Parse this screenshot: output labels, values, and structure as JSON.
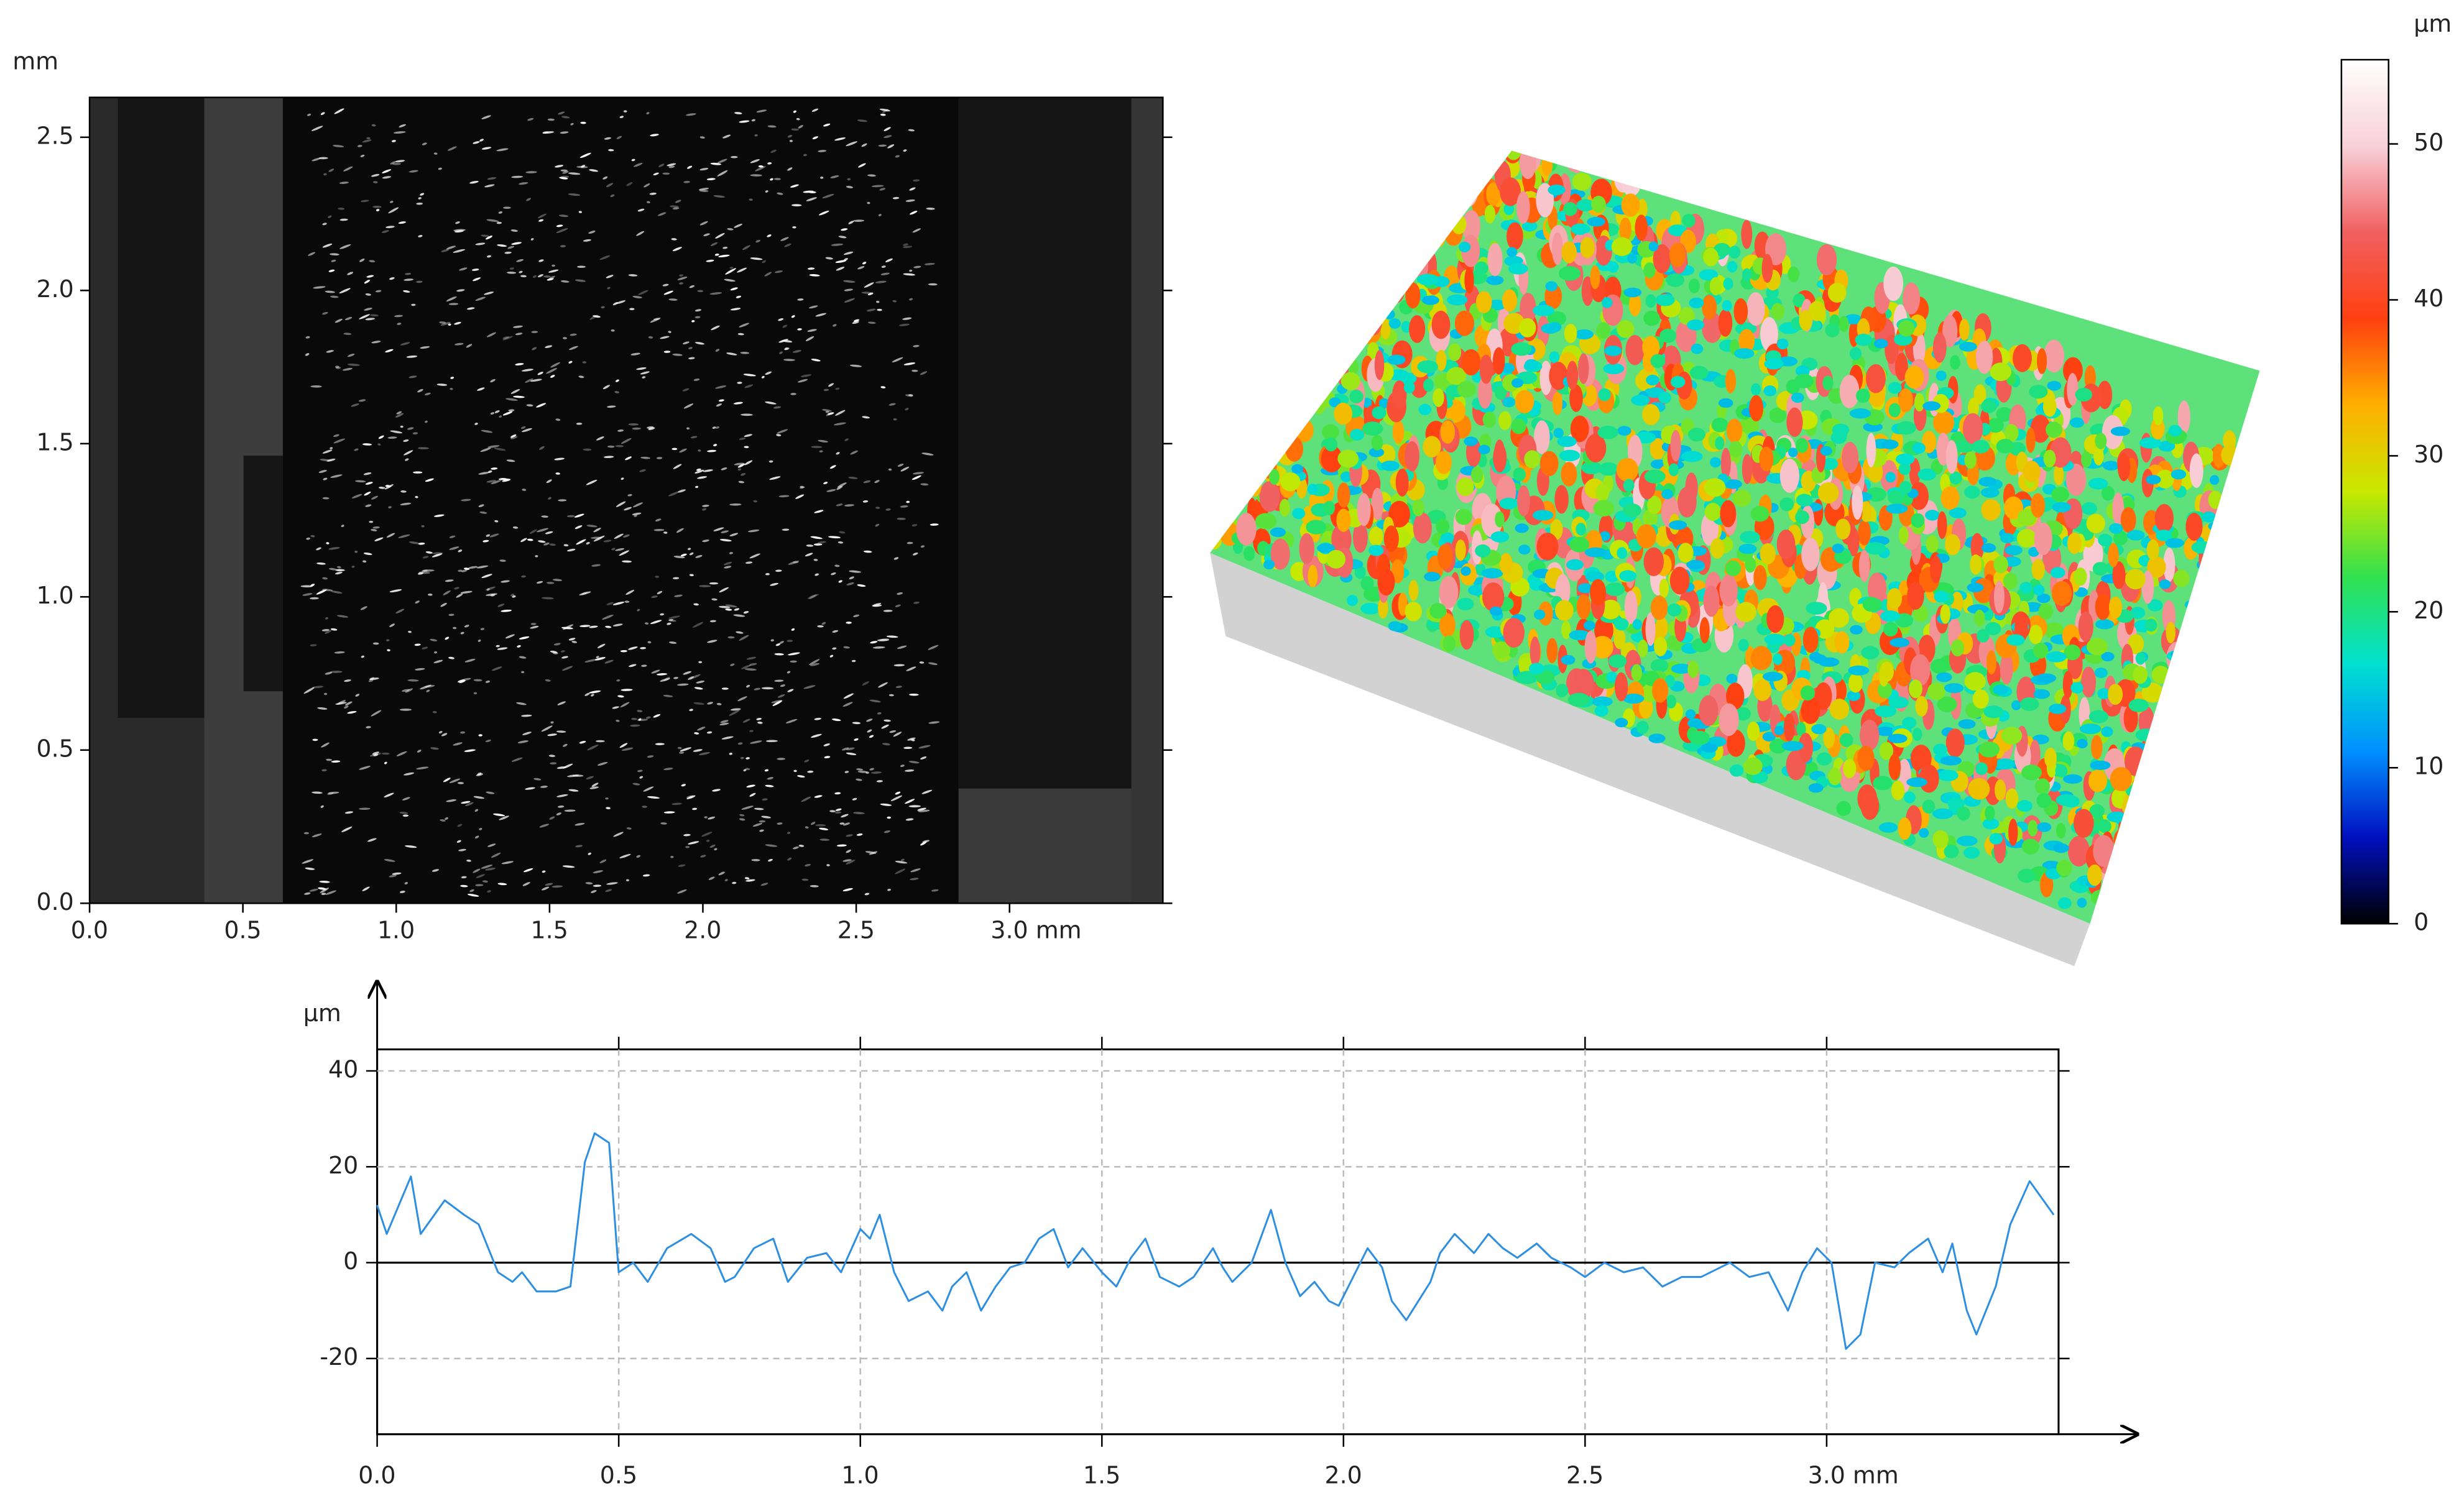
{
  "chart_data": [
    {
      "type": "image",
      "ylabel": "mm",
      "xlim": [
        0,
        3.5
      ],
      "ylim": [
        0,
        2.63
      ],
      "xticks": [
        {
          "value": 0,
          "label": "0.0"
        },
        {
          "value": 0.5,
          "label": "0.5"
        },
        {
          "value": 1,
          "label": "1.0"
        },
        {
          "value": 1.5,
          "label": "1.5"
        },
        {
          "value": 2,
          "label": "2.0"
        },
        {
          "value": 2.5,
          "label": "2.5"
        },
        {
          "value": 3,
          "label": "3.0 mm"
        }
      ],
      "yticks": [
        {
          "value": 0,
          "label": "0.0"
        },
        {
          "value": 0.5,
          "label": "0.5"
        },
        {
          "value": 1,
          "label": "1.0"
        },
        {
          "value": 1.5,
          "label": "1.5"
        },
        {
          "value": 2,
          "label": "2.0"
        },
        {
          "value": 2.5,
          "label": "2.5"
        }
      ]
    },
    {
      "type": "colorbar",
      "label": "µm",
      "ylim": [
        0,
        55.4
      ],
      "yticks": [
        0,
        10,
        20,
        30,
        40,
        50
      ],
      "colormap": [
        "#000000",
        "#0010c0",
        "#0090ff",
        "#00e0d0",
        "#30e050",
        "#c8e800",
        "#ffb000",
        "#ff4010",
        "#f06060",
        "#f8d0d8",
        "#ffffff"
      ]
    },
    {
      "type": "line",
      "ylabel": "µm",
      "color": "#2e8fe0",
      "grid": true,
      "xlim": [
        0,
        3.48
      ],
      "ylim": [
        -35.8,
        44.5
      ],
      "xticks": [
        {
          "value": 0,
          "label": "0.0"
        },
        {
          "value": 0.5,
          "label": "0.5"
        },
        {
          "value": 1,
          "label": "1.0"
        },
        {
          "value": 1.5,
          "label": "1.5"
        },
        {
          "value": 2,
          "label": "2.0"
        },
        {
          "value": 2.5,
          "label": "2.5"
        },
        {
          "value": 3,
          "label": "3.0 mm"
        }
      ],
      "yticks": [
        40,
        20,
        0,
        -20
      ],
      "x": [
        0,
        0.02,
        0.07,
        0.09,
        0.14,
        0.18,
        0.21,
        0.25,
        0.28,
        0.3,
        0.33,
        0.37,
        0.4,
        0.43,
        0.45,
        0.48,
        0.5,
        0.53,
        0.56,
        0.6,
        0.65,
        0.69,
        0.72,
        0.74,
        0.78,
        0.82,
        0.85,
        0.89,
        0.93,
        0.96,
        1,
        1.02,
        1.04,
        1.07,
        1.1,
        1.14,
        1.17,
        1.19,
        1.22,
        1.25,
        1.28,
        1.31,
        1.34,
        1.37,
        1.4,
        1.43,
        1.46,
        1.5,
        1.53,
        1.56,
        1.59,
        1.62,
        1.66,
        1.69,
        1.73,
        1.75,
        1.77,
        1.81,
        1.85,
        1.88,
        1.91,
        1.94,
        1.97,
        1.99,
        2.02,
        2.05,
        2.08,
        2.1,
        2.13,
        2.18,
        2.2,
        2.23,
        2.27,
        2.3,
        2.33,
        2.36,
        2.4,
        2.43,
        2.47,
        2.5,
        2.54,
        2.58,
        2.62,
        2.66,
        2.7,
        2.74,
        2.8,
        2.84,
        2.88,
        2.92,
        2.95,
        2.98,
        3.01,
        3.04,
        3.07,
        3.1,
        3.14,
        3.17,
        3.21,
        3.24,
        3.26,
        3.29,
        3.31,
        3.35,
        3.38,
        3.42,
        3.47
      ],
      "values": [
        12,
        6,
        18,
        6,
        13,
        10,
        8,
        -2,
        -4,
        -2,
        -6,
        -6,
        -5,
        21,
        27,
        25,
        -2,
        0,
        -4,
        3,
        6,
        3,
        -4,
        -3,
        3,
        5,
        -4,
        1,
        2,
        -2,
        7,
        5,
        10,
        -2,
        -8,
        -6,
        -10,
        -5,
        -2,
        -10,
        -5,
        -1,
        0,
        5,
        7,
        -1,
        3,
        -2,
        -5,
        1,
        5,
        -3,
        -5,
        -3,
        3,
        -1,
        -4,
        0,
        11,
        0,
        -7,
        -4,
        -8,
        -9,
        -3,
        3,
        -1,
        -8,
        -12,
        -4,
        2,
        6,
        2,
        6,
        3,
        1,
        4,
        1,
        -1,
        -3,
        0,
        -2,
        -1,
        -5,
        -3,
        -3,
        0,
        -3,
        -2,
        -10,
        -2,
        3,
        0,
        -18,
        -15,
        0,
        -1,
        2,
        5,
        -2,
        4,
        -10,
        -15,
        -5,
        8,
        17,
        10
      ]
    }
  ]
}
